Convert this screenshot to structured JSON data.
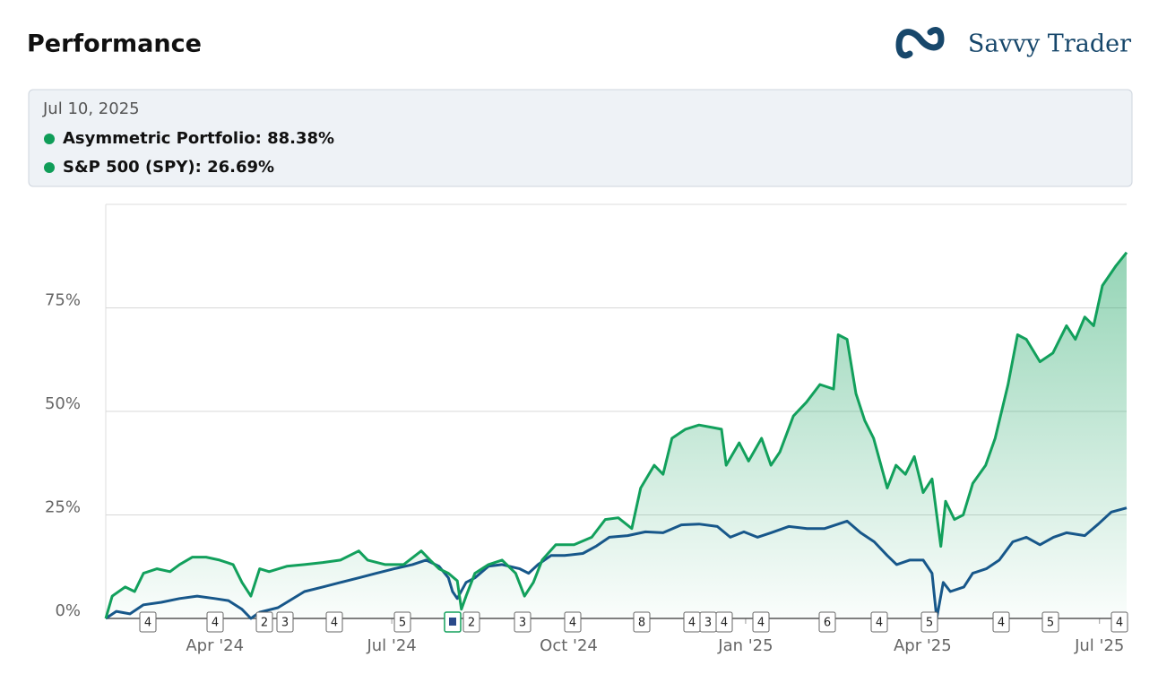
{
  "header": {
    "title": "Performance",
    "brand": "Savvy Trader"
  },
  "tooltip": {
    "date": "Jul 10, 2025",
    "lines": [
      "Asymmetric Portfolio: 88.38%",
      "S&P 500 (SPY): 26.69%"
    ],
    "dot_color": "#0f9d58"
  },
  "chart_data": {
    "type": "line",
    "xlim": [
      1.15,
      18.46
    ],
    "xticks": [
      {
        "value": 3,
        "label": "Apr '24"
      },
      {
        "value": 6,
        "label": "Jul '24"
      },
      {
        "value": 9,
        "label": "Oct '24"
      },
      {
        "value": 12,
        "label": "Jan '25"
      },
      {
        "value": 15,
        "label": "Apr '25"
      },
      {
        "value": 18,
        "label": "Jul '25"
      }
    ],
    "ylim": [
      0,
      100
    ],
    "yticks": [
      {
        "value": 0,
        "label": "0%"
      },
      {
        "value": 25,
        "label": "25%"
      },
      {
        "value": 50,
        "label": "50%"
      },
      {
        "value": 75,
        "label": "75%"
      }
    ],
    "grid": true,
    "series": [
      {
        "name": "Asymmetric Portfolio",
        "color": "#12a05c",
        "fill": true,
        "x": [
          1.15,
          1.26,
          1.48,
          1.64,
          1.79,
          2.02,
          2.24,
          2.4,
          2.62,
          2.85,
          3.08,
          3.31,
          3.46,
          3.61,
          3.76,
          3.92,
          4.22,
          4.52,
          4.83,
          5.13,
          5.44,
          5.59,
          5.89,
          6.2,
          6.5,
          6.65,
          6.8,
          6.96,
          7.11,
          7.18,
          7.26,
          7.41,
          7.64,
          7.87,
          8.1,
          8.25,
          8.4,
          8.55,
          8.78,
          9.09,
          9.39,
          9.62,
          9.84,
          10.07,
          10.22,
          10.45,
          10.6,
          10.75,
          10.98,
          11.21,
          11.44,
          11.59,
          11.67,
          11.89,
          12.05,
          12.27,
          12.43,
          12.58,
          12.81,
          13.03,
          13.26,
          13.49,
          13.57,
          13.72,
          13.87,
          14.02,
          14.17,
          14.4,
          14.55,
          14.71,
          14.86,
          15.01,
          15.16,
          15.31,
          15.39,
          15.54,
          15.69,
          15.85,
          16.07,
          16.23,
          16.45,
          16.61,
          16.76,
          16.99,
          17.21,
          17.44,
          17.59,
          17.75,
          17.9,
          18.05,
          18.28,
          18.46
        ],
        "values": [
          0,
          5.4,
          7.6,
          6.5,
          10.9,
          12.0,
          11.3,
          13.0,
          14.8,
          14.8,
          14.1,
          13.0,
          8.7,
          5.4,
          12.0,
          11.3,
          12.6,
          13.0,
          13.5,
          14.1,
          16.3,
          14.1,
          13.0,
          13.0,
          16.3,
          14.1,
          12.0,
          10.9,
          9.1,
          2.2,
          5.4,
          10.9,
          13.0,
          14.1,
          10.9,
          5.4,
          8.7,
          14.1,
          17.8,
          17.8,
          19.6,
          23.9,
          24.3,
          21.7,
          31.5,
          37.0,
          34.8,
          43.5,
          45.7,
          46.7,
          46.1,
          45.7,
          37.0,
          42.4,
          38.0,
          43.5,
          37.0,
          40.2,
          48.9,
          52.2,
          56.5,
          55.4,
          68.5,
          67.4,
          54.3,
          47.8,
          43.5,
          31.5,
          37.0,
          34.8,
          39.1,
          30.4,
          33.7,
          17.4,
          28.3,
          23.9,
          25.0,
          32.6,
          37.0,
          43.5,
          56.5,
          68.5,
          67.4,
          62.0,
          64.1,
          70.7,
          67.4,
          72.8,
          70.7,
          80.4,
          85.2,
          88.38
        ]
      },
      {
        "name": "S&P 500 (SPY)",
        "color": "#17578a",
        "fill": false,
        "x": [
          1.15,
          1.33,
          1.56,
          1.79,
          2.09,
          2.4,
          2.7,
          3.0,
          3.23,
          3.46,
          3.61,
          3.76,
          4.07,
          4.22,
          4.52,
          4.83,
          5.13,
          5.44,
          5.74,
          6.04,
          6.35,
          6.58,
          6.8,
          6.96,
          7.03,
          7.11,
          7.26,
          7.41,
          7.64,
          7.87,
          8.17,
          8.32,
          8.48,
          8.7,
          8.93,
          9.24,
          9.46,
          9.69,
          10.0,
          10.3,
          10.6,
          10.91,
          11.21,
          11.52,
          11.74,
          11.97,
          12.2,
          12.43,
          12.73,
          13.04,
          13.34,
          13.72,
          13.95,
          14.18,
          14.4,
          14.56,
          14.78,
          15.01,
          15.16,
          15.24,
          15.35,
          15.47,
          15.7,
          15.85,
          16.08,
          16.3,
          16.53,
          16.76,
          16.99,
          17.22,
          17.44,
          17.75,
          17.98,
          18.2,
          18.46
        ],
        "values": [
          0,
          1.7,
          1.1,
          3.3,
          3.9,
          4.8,
          5.4,
          4.8,
          4.3,
          2.2,
          0,
          1.5,
          2.6,
          3.9,
          6.5,
          7.6,
          8.7,
          9.8,
          10.9,
          12.0,
          13.0,
          14.1,
          12.6,
          9.8,
          6.5,
          4.8,
          8.7,
          9.8,
          12.6,
          13.0,
          12.0,
          10.9,
          13.0,
          15.2,
          15.2,
          15.7,
          17.4,
          19.6,
          20.0,
          20.9,
          20.7,
          22.6,
          22.8,
          22.2,
          19.6,
          20.9,
          19.6,
          20.7,
          22.2,
          21.7,
          21.7,
          23.5,
          20.7,
          18.5,
          15.2,
          13.0,
          14.1,
          14.1,
          10.9,
          0,
          8.7,
          6.5,
          7.6,
          10.9,
          12.0,
          14.1,
          18.5,
          19.6,
          17.8,
          19.6,
          20.7,
          20.0,
          22.8,
          25.7,
          26.69
        ]
      }
    ],
    "event_markers": [
      "4",
      "4",
      "2",
      "3",
      "4",
      "5",
      "2",
      "3",
      "4",
      "8",
      "4",
      "3",
      "4",
      "4",
      "6",
      "4",
      "5",
      "4",
      "5",
      "4"
    ]
  }
}
